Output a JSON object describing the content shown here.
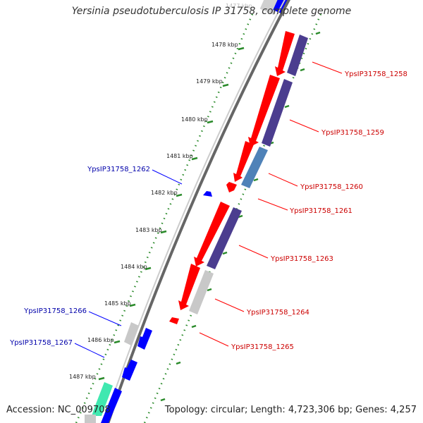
{
  "title": "Yersinia pseudotuberculosis IP 31758, complete genome",
  "accession": "Accession: NC_009708",
  "summary": "Topology: circular; Length: 4,723,306 bp; Genes: 4,257",
  "top_partial_tick": "1477 kbp",
  "ticks": [
    "1478 kbp",
    "1479 kbp",
    "1480 kbp",
    "1481 kbp",
    "1482 kbp",
    "1483 kbp",
    "1484 kbp",
    "1485 kbp",
    "1486 kbp",
    "1487 kbp"
  ],
  "forward_gene_labels": [
    "YpsIP31758_1258",
    "YpsIP31758_1259",
    "YpsIP31758_1260",
    "YpsIP31758_1261",
    "YpsIP31758_1263",
    "YpsIP31758_1264",
    "YpsIP31758_1265"
  ],
  "reverse_gene_labels": [
    "YpsIP31758_1262",
    "YpsIP31758_1266",
    "YpsIP31758_1267"
  ],
  "colors": {
    "forward_gene": "#ff0000",
    "reverse_gene": "#0000ff",
    "cds_dark": "#4b3d8f",
    "cds_light": "#4f82b8",
    "cds_grey": "#c8c8c8",
    "cds_teal": "#40e8b0",
    "forward_label": "#cc0000",
    "reverse_label": "#0000aa",
    "tick_dots": "#2a8a2a",
    "backbone": "#808080"
  }
}
